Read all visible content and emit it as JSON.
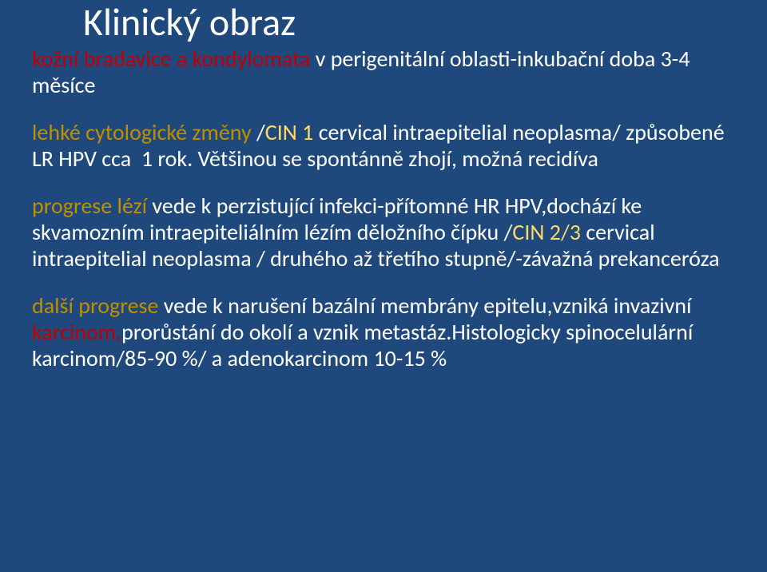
{
  "background_color": "#1f497d",
  "title": {
    "text": "Klinický obraz",
    "color": "#ffffff",
    "font_size_pt": 36
  },
  "body_font_size_pt": 21,
  "colors": {
    "white": "#ffffff",
    "red": "#c00000",
    "orange": "#bf8f00",
    "yellow": "#ffd966"
  },
  "blocks": [
    {
      "spans": [
        {
          "text": "kožní bradavice a kondylomata ",
          "color": "red"
        },
        {
          "text": "v perigenitální oblasti-inkubační doba 3-4 měsíce",
          "color": "white"
        }
      ]
    },
    {
      "spans": [
        {
          "text": "lehké cytologické změny ",
          "color": "orange"
        },
        {
          "text": "/",
          "color": "white"
        },
        {
          "text": "CIN 1 ",
          "color": "yellow"
        },
        {
          "text": "cervical intraepitelial neoplasma/ způsobené LR HPV cca  1 rok. Většinou se spontánně zhojí, možná recidíva",
          "color": "white"
        }
      ]
    },
    {
      "spans": [
        {
          "text": "progrese lézí ",
          "color": "orange"
        },
        {
          "text": "vede k perzistující infekci-přítomné HR HPV,dochází ke skvamozním intraepiteliálním lézím děložního čípku /",
          "color": "white"
        },
        {
          "text": "CIN 2/3 ",
          "color": "yellow"
        },
        {
          "text": "cervical intraepitelial neoplasma / druhého až třetího stupně/-závažná prekanceróza",
          "color": "white"
        }
      ]
    },
    {
      "spans": [
        {
          "text": "další progrese ",
          "color": "orange"
        },
        {
          "text": "vede k narušení bazální membrány epitelu,vzniká invazivní ",
          "color": "white"
        },
        {
          "text": "karcinom,",
          "color": "red"
        },
        {
          "text": "prorůstání do okolí a vznik metastáz.Histologicky spinocelulární karcinom/85-90 %/ a adenokarcinom 10-15 %",
          "color": "white"
        }
      ]
    }
  ]
}
